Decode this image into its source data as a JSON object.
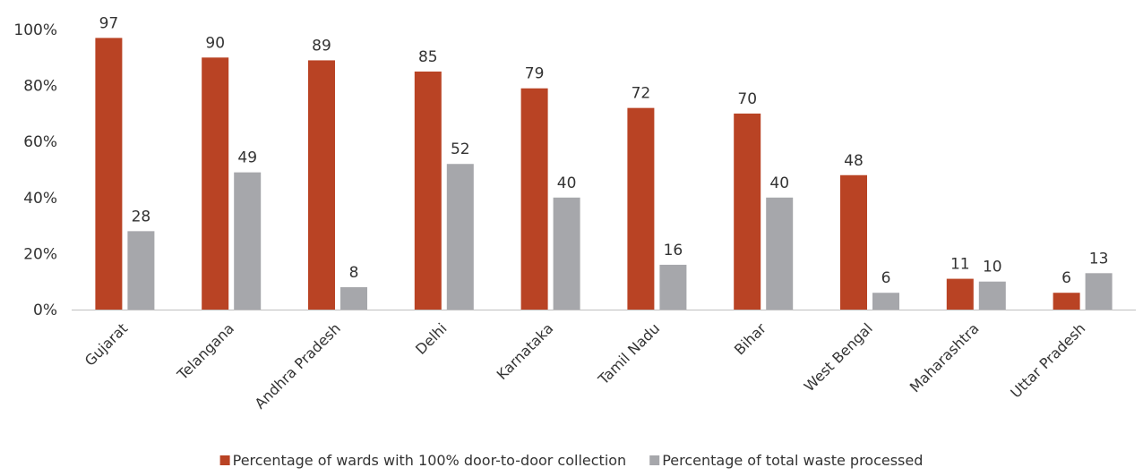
{
  "chart_data": {
    "type": "bar",
    "categories": [
      "Gujarat",
      "Telangana",
      "Andhra Pradesh",
      "Delhi",
      "Karnataka",
      "Tamil Nadu",
      "Bihar",
      "West Bengal",
      "Maharashtra",
      "Uttar Pradesh"
    ],
    "series": [
      {
        "name": "Percentage of wards with 100% door-to-door collection",
        "values": [
          97,
          90,
          89,
          85,
          79,
          72,
          70,
          48,
          11,
          6
        ],
        "color": "#b94324"
      },
      {
        "name": "Percentage of total waste processed",
        "values": [
          28,
          49,
          8,
          52,
          40,
          16,
          40,
          6,
          10,
          13
        ],
        "color": "#a6a7ab"
      }
    ],
    "yticks": [
      "0%",
      "20%",
      "40%",
      "60%",
      "80%",
      "100%"
    ],
    "ylim": [
      0,
      100
    ],
    "grid": false,
    "legend_position": "bottom"
  }
}
